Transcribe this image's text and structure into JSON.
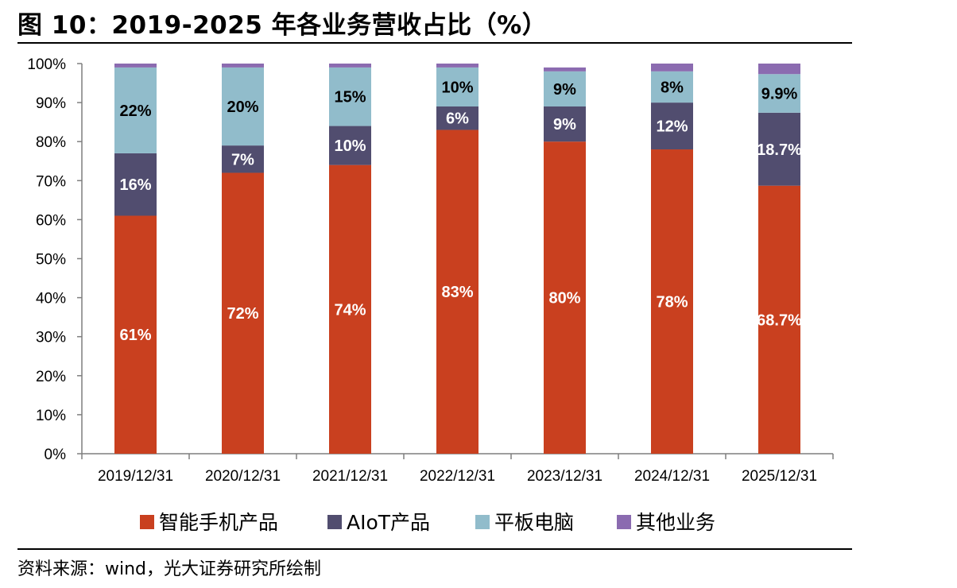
{
  "header": {
    "title": "图 10：2019-2025 年各业务营收占比（%）"
  },
  "footer": {
    "source": "资料来源：wind，光大证券研究所绘制"
  },
  "chart_data": {
    "type": "bar",
    "stacked": true,
    "title": "图 10：2019-2025 年各业务营收占比（%）",
    "categories": [
      "2019/12/31",
      "2020/12/31",
      "2021/12/31",
      "2022/12/31",
      "2023/12/31",
      "2024/12/31",
      "2025/12/31"
    ],
    "y_ticks": [
      "0%",
      "10%",
      "20%",
      "30%",
      "40%",
      "50%",
      "60%",
      "70%",
      "80%",
      "90%",
      "100%"
    ],
    "ylim": [
      0,
      100
    ],
    "grid": false,
    "legend_position": "bottom",
    "series": [
      {
        "name": "智能手机产品",
        "color": "#c9401f",
        "label_color": "#ffffff",
        "values": [
          61,
          72,
          74,
          83,
          80,
          78,
          68.7
        ],
        "labels": [
          "61%",
          "72%",
          "74%",
          "83%",
          "80%",
          "78%",
          "68.7%"
        ]
      },
      {
        "name": "AIoT产品",
        "color": "#514d6f",
        "label_color": "#ffffff",
        "values": [
          16,
          7,
          10,
          6,
          9,
          12,
          18.7
        ],
        "labels": [
          "16%",
          "7%",
          "10%",
          "6%",
          "9%",
          "12%",
          "18.7%"
        ]
      },
      {
        "name": "平板电脑",
        "color": "#91bccb",
        "label_color": "#000000",
        "values": [
          22,
          20,
          15,
          10,
          9,
          8,
          9.9
        ],
        "labels": [
          "22%",
          "20%",
          "15%",
          "10%",
          "9%",
          "8%",
          "9.9%"
        ]
      },
      {
        "name": "其他业务",
        "color": "#8b6bb0",
        "label_color": "#000000",
        "values": [
          1,
          1,
          1,
          1,
          1,
          2,
          2.7
        ],
        "labels": [
          "",
          "",
          "",
          "",
          "",
          "",
          ""
        ]
      }
    ]
  }
}
